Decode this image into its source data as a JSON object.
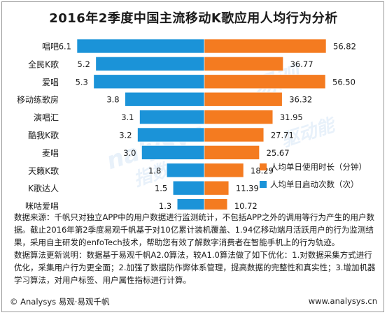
{
  "title": "2016年2季度中国主流移动K歌应用人均行为分析",
  "chart_data": {
    "type": "bar",
    "subtype": "butterfly-funnel",
    "categories": [
      "唱吧",
      "全民K歌",
      "爱唱",
      "移动练歌房",
      "演唱汇",
      "酷我K歌",
      "麦唱",
      "天籁K歌",
      "K歌达人",
      "咪咕爱唱"
    ],
    "series": [
      {
        "name": "人均单日启动次数（次）",
        "color": "#1b93d8",
        "side": "left",
        "values": [
          6.1,
          5.2,
          5.3,
          3.8,
          3.1,
          3.2,
          3.0,
          1.8,
          1.5,
          1.3
        ]
      },
      {
        "name": "人均单日使用时长（分钟）",
        "color": "#f47b20",
        "side": "right",
        "values": [
          56.82,
          36.77,
          56.5,
          36.32,
          31.95,
          27.71,
          25.67,
          18.29,
          11.39,
          10.72
        ]
      }
    ],
    "value_labels_left": [
      "6.1",
      "5.2",
      "5.3",
      "3.8",
      "3.1",
      "3.2",
      "3.0",
      "1.8",
      "1.5",
      "1.3"
    ],
    "value_labels_right": [
      "56.82",
      "36.77",
      "56.50",
      "36.32",
      "31.95",
      "27.71",
      "25.67",
      "18.29",
      "11.39",
      "10.72"
    ],
    "legend_position": "bottom-right",
    "grid": false
  },
  "notes": [
    "数据来源：千帆只对独立APP中的用户数据进行监测统计，不包括APP之外的调用等行为产生的用户数据。截止2016年第2季度易观千帆基于对10亿累计装机覆盖、1.94亿移动端月活跃用户的行为监测结果，采用自主研发的enfoTech技术，帮助您有效了解数字消费者在智能手机上的行为轨迹。",
    "数据算法更新说明：数据基于易观千帆A2.0算法，较A1.0算法做了如下优化：1.对数据采集方式进行优化，采集用户行为更全面；2.加强了数据防作弊体系管理，提高数据的完整性和真实性；3.增加机器学习算法，对用户标签、用户属性指标进行计算。"
  ],
  "footer": {
    "left": "© Analysys 易观·易观千帆",
    "right": "www.analysys.cn"
  }
}
